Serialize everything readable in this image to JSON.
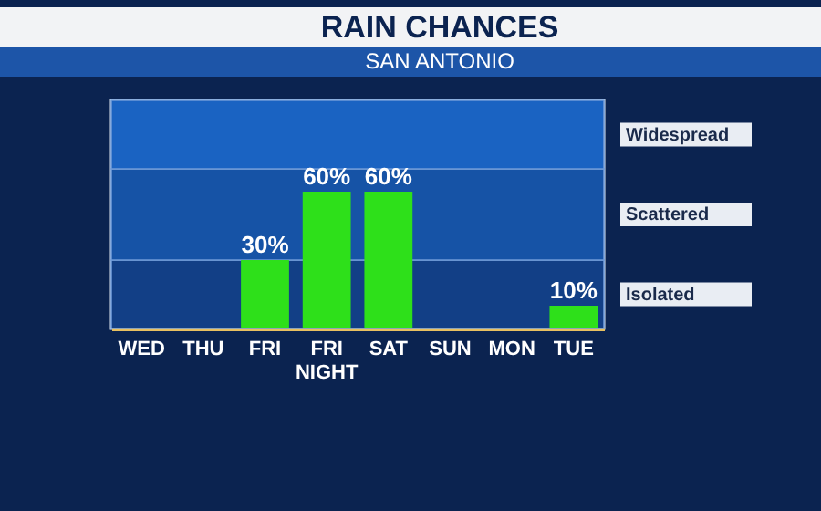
{
  "chart_data": {
    "type": "bar",
    "title": "RAIN CHANCES",
    "subtitle": "SAN ANTONIO",
    "categories": [
      "WED",
      "THU",
      "FRI",
      "FRI NIGHT",
      "SAT",
      "SUN",
      "MON",
      "TUE"
    ],
    "values": [
      0,
      0,
      30,
      60,
      60,
      0,
      0,
      10
    ],
    "value_labels": [
      null,
      null,
      "30%",
      "60%",
      "60%",
      null,
      null,
      "10%"
    ],
    "color": "#2ee01a",
    "ylim": [
      0,
      100
    ],
    "tick_labels": "x",
    "bands": [
      {
        "axis": "y",
        "from": 0,
        "to": 30,
        "label": "Isolated",
        "color": "#123f86"
      },
      {
        "axis": "y",
        "from": 30,
        "to": 70,
        "label": "Scattered",
        "color": "#1653a6"
      },
      {
        "axis": "y",
        "from": 70,
        "to": 100,
        "label": "Widespread",
        "color": "#1a63c2"
      }
    ]
  }
}
